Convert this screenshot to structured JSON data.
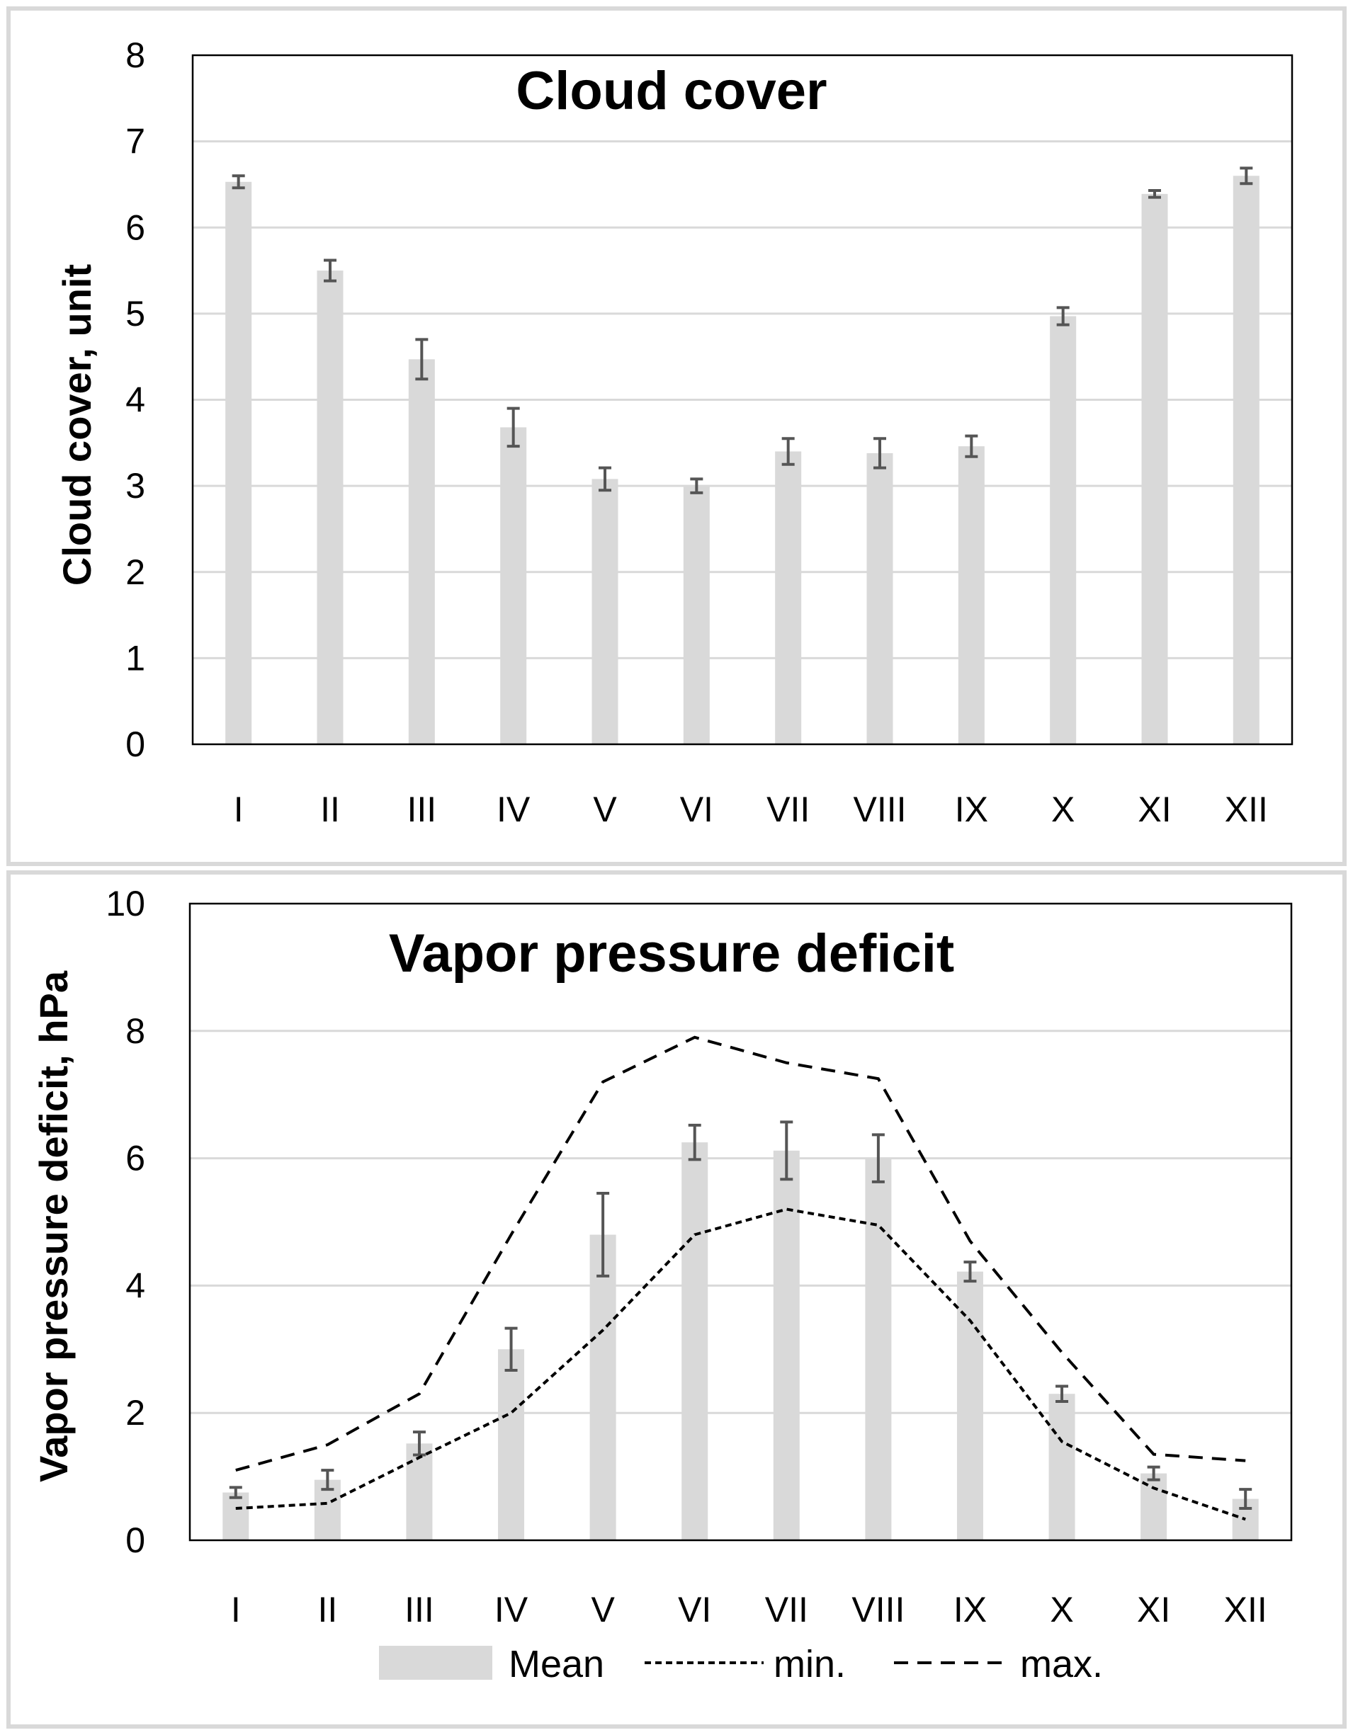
{
  "chart_data": [
    {
      "type": "bar",
      "title": "Cloud cover",
      "xlabel": "",
      "ylabel": "Cloud cover, unit",
      "ylim": [
        0,
        8
      ],
      "yticks": [
        0,
        1,
        2,
        3,
        4,
        5,
        6,
        7,
        8
      ],
      "grid": true,
      "categories": [
        "I",
        "II",
        "III",
        "IV",
        "V",
        "VI",
        "VII",
        "VIII",
        "IX",
        "X",
        "XI",
        "XII"
      ],
      "series": [
        {
          "name": "Mean",
          "values": [
            6.53,
            5.5,
            4.47,
            3.68,
            3.08,
            3.0,
            3.4,
            3.38,
            3.46,
            4.97,
            6.39,
            6.6
          ],
          "error": [
            0.07,
            0.12,
            0.23,
            0.22,
            0.13,
            0.08,
            0.15,
            0.17,
            0.12,
            0.1,
            0.04,
            0.09
          ]
        }
      ],
      "bar_color": "#d9d9d9"
    },
    {
      "type": "bar",
      "title": "Vapor pressure deficit",
      "xlabel": "",
      "ylabel": "Vapor pressure deficit, hPa",
      "ylim": [
        0,
        10
      ],
      "yticks": [
        0,
        2,
        4,
        6,
        8,
        10
      ],
      "grid": true,
      "categories": [
        "I",
        "II",
        "III",
        "IV",
        "V",
        "VI",
        "VII",
        "VIII",
        "IX",
        "X",
        "XI",
        "XII"
      ],
      "series": [
        {
          "name": "Mean",
          "type": "bar",
          "values": [
            0.75,
            0.95,
            1.52,
            3.0,
            4.8,
            6.25,
            6.12,
            6.0,
            4.22,
            2.3,
            1.05,
            0.65
          ],
          "error": [
            0.08,
            0.15,
            0.18,
            0.33,
            0.65,
            0.27,
            0.45,
            0.37,
            0.15,
            0.12,
            0.1,
            0.15
          ]
        },
        {
          "name": "min.",
          "type": "line",
          "dash": "short",
          "values": [
            0.5,
            0.58,
            1.3,
            2.0,
            3.3,
            4.8,
            5.2,
            4.95,
            3.45,
            1.55,
            0.82,
            0.33
          ]
        },
        {
          "name": "max.",
          "type": "line",
          "dash": "long",
          "values": [
            1.1,
            1.5,
            2.3,
            4.8,
            7.2,
            7.9,
            7.5,
            7.25,
            4.7,
            2.95,
            1.35,
            1.25
          ]
        }
      ],
      "bar_color": "#d9d9d9",
      "legend": {
        "position": "bottom",
        "entries": [
          "Mean",
          "min.",
          "max."
        ]
      }
    }
  ]
}
